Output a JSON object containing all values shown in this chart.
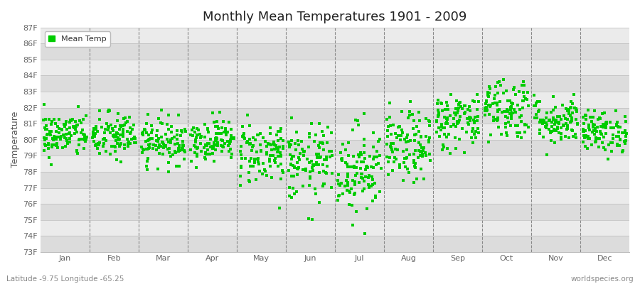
{
  "title": "Monthly Mean Temperatures 1901 - 2009",
  "ylabel": "Temperature",
  "xlabel_bottom_left": "Latitude -9.75 Longitude -65.25",
  "xlabel_bottom_right": "worldspecies.org",
  "months": [
    "Jan",
    "Feb",
    "Mar",
    "Apr",
    "May",
    "Jun",
    "Jul",
    "Aug",
    "Sep",
    "Oct",
    "Nov",
    "Dec"
  ],
  "ytick_labels": [
    "73F",
    "74F",
    "75F",
    "76F",
    "77F",
    "78F",
    "79F",
    "80F",
    "81F",
    "82F",
    "83F",
    "84F",
    "85F",
    "86F",
    "87F"
  ],
  "ytick_values": [
    73,
    74,
    75,
    76,
    77,
    78,
    79,
    80,
    81,
    82,
    83,
    84,
    85,
    86,
    87
  ],
  "ylim": [
    73,
    87
  ],
  "marker_color": "#00CC00",
  "marker": "s",
  "marker_size": 2.5,
  "background_color": "#FFFFFF",
  "plot_bg_dark": "#DCDCDC",
  "plot_bg_light": "#EBEBEB",
  "title_fontsize": 13,
  "label_fontsize": 9,
  "tick_fontsize": 8,
  "legend_label": "Mean Temp",
  "num_years": 109,
  "seed": 42,
  "monthly_means": [
    80.3,
    80.2,
    79.9,
    80.0,
    79.2,
    78.5,
    78.2,
    79.5,
    81.2,
    82.0,
    81.2,
    80.5
  ],
  "monthly_stds": [
    0.7,
    0.75,
    0.7,
    0.65,
    1.0,
    1.2,
    1.4,
    1.1,
    0.9,
    1.0,
    0.75,
    0.65
  ]
}
